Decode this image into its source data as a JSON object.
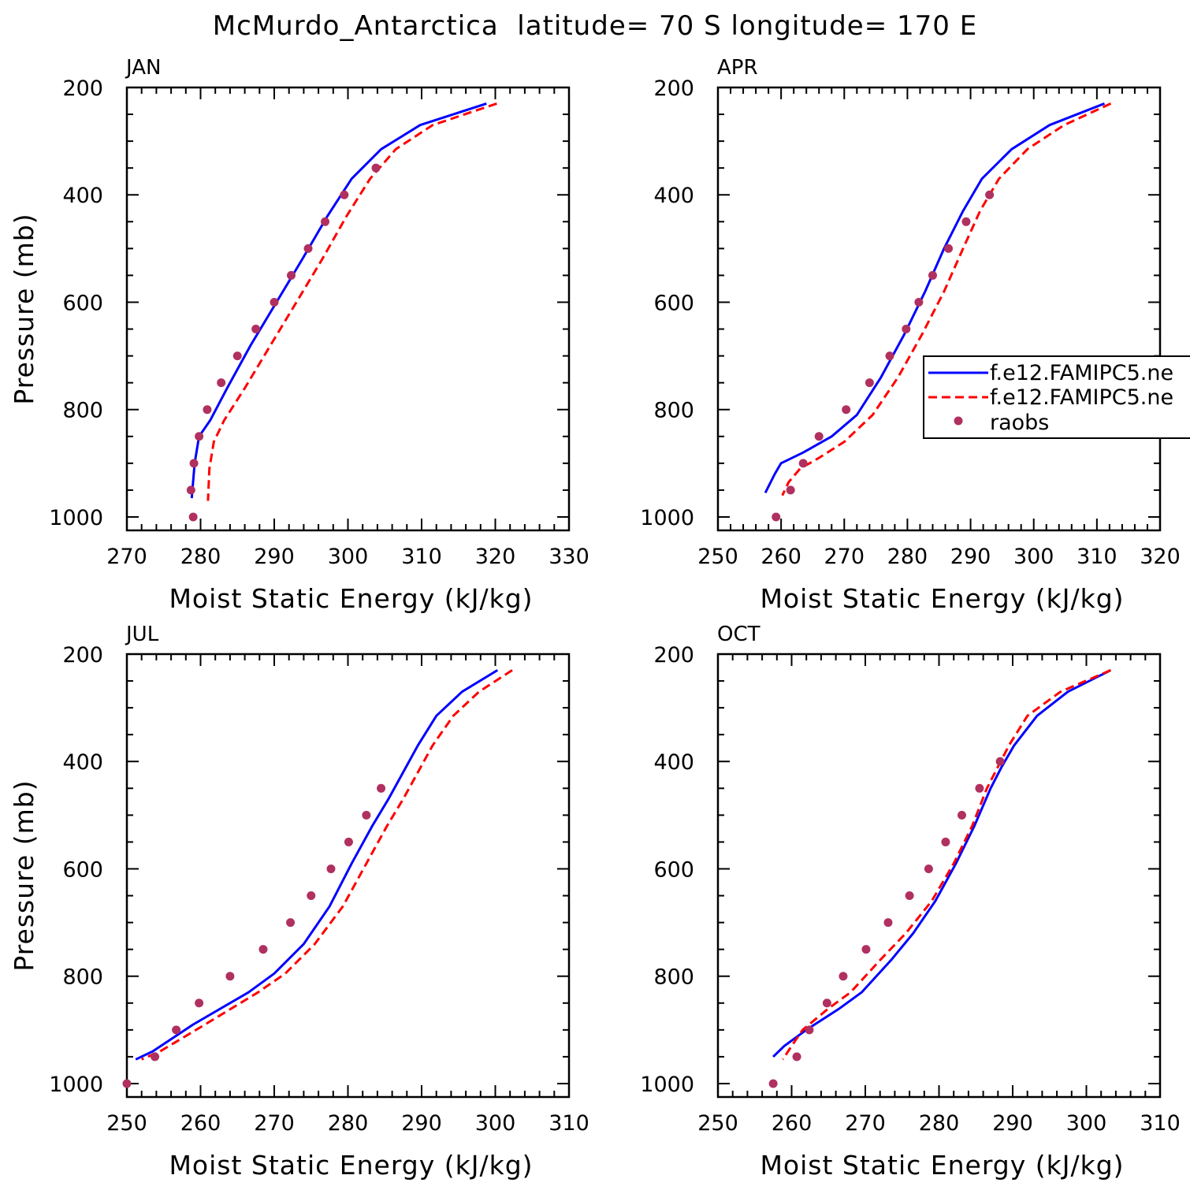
{
  "title": "McMurdo_Antarctica  latitude= 70 S longitude= 170 E",
  "chart_data": [
    {
      "type": "line",
      "panel": "JAN",
      "xlabel": "Moist Static Energy (kJ/kg)",
      "ylabel": "Pressure (mb)",
      "xlim": [
        270,
        330
      ],
      "ylim": [
        200,
        1025
      ],
      "y_reversed": true,
      "xticks": [
        270,
        280,
        290,
        300,
        310,
        320,
        330
      ],
      "yticks": [
        200,
        400,
        600,
        800,
        1000
      ],
      "grid": false,
      "series": [
        {
          "style": "solid",
          "color": "#0000ff",
          "x": [
            318.8,
            309.8,
            304.5,
            300.5,
            297.2,
            293.8,
            290.3,
            286.8,
            283.6,
            281.3,
            279.8,
            279.2,
            278.8
          ],
          "y": [
            230,
            270,
            315,
            370,
            440,
            520,
            600,
            680,
            760,
            820,
            850,
            900,
            965
          ]
        },
        {
          "style": "dashed",
          "color": "#ff0000",
          "x": [
            320.2,
            311.5,
            306.5,
            303.0,
            299.8,
            296.5,
            293.0,
            289.5,
            286.0,
            283.2,
            281.8,
            281.2,
            281.0
          ],
          "y": [
            230,
            270,
            315,
            370,
            440,
            520,
            600,
            680,
            760,
            820,
            860,
            910,
            970
          ]
        },
        {
          "style": "markers",
          "color": "#b03060",
          "x": [
            303.8,
            299.5,
            296.9,
            294.6,
            292.3,
            290.0,
            287.5,
            285.0,
            282.8,
            280.9,
            279.8,
            279.1,
            278.7,
            279.0
          ],
          "y": [
            350,
            400,
            450,
            500,
            550,
            600,
            650,
            700,
            750,
            800,
            850,
            900,
            950,
            1000
          ]
        }
      ]
    },
    {
      "type": "line",
      "panel": "APR",
      "xlabel": "Moist Static Energy (kJ/kg)",
      "xlim": [
        250,
        320
      ],
      "ylim": [
        200,
        1025
      ],
      "y_reversed": true,
      "xticks": [
        250,
        260,
        270,
        280,
        290,
        300,
        310,
        320
      ],
      "yticks": [
        200,
        400,
        600,
        800,
        1000
      ],
      "grid": false,
      "legend": {
        "placement": "right",
        "entries": [
          "f.e12.FAMIPC5.ne",
          "f.e12.FAMIPC5.ne",
          "raobs"
        ]
      },
      "series": [
        {
          "style": "solid",
          "color": "#0000ff",
          "x": [
            311.2,
            302.5,
            296.5,
            291.8,
            288.8,
            285.8,
            282.8,
            279.5,
            275.8,
            272.0,
            268.0,
            263.5,
            260.0,
            259.0,
            257.5
          ],
          "y": [
            230,
            270,
            315,
            370,
            430,
            500,
            580,
            660,
            740,
            810,
            850,
            880,
            900,
            920,
            955
          ]
        },
        {
          "style": "dashed",
          "color": "#ff0000",
          "x": [
            312.2,
            304.8,
            299.0,
            294.5,
            291.5,
            288.8,
            285.8,
            282.3,
            278.5,
            274.5,
            270.0,
            266.0,
            263.0,
            261.2,
            260.2
          ],
          "y": [
            230,
            270,
            315,
            370,
            430,
            500,
            580,
            660,
            740,
            810,
            860,
            890,
            910,
            935,
            960
          ]
        },
        {
          "style": "markers",
          "color": "#b03060",
          "x": [
            293.0,
            289.3,
            286.5,
            284.0,
            281.8,
            279.8,
            277.2,
            274.0,
            270.3,
            266.0,
            263.5,
            261.5,
            259.2
          ],
          "y": [
            400,
            450,
            500,
            550,
            600,
            650,
            700,
            750,
            800,
            850,
            900,
            950,
            1000
          ]
        }
      ]
    },
    {
      "type": "line",
      "panel": "JUL",
      "xlabel": "Moist Static Energy (kJ/kg)",
      "ylabel": "Pressure (mb)",
      "xlim": [
        250,
        310
      ],
      "ylim": [
        200,
        1025
      ],
      "y_reversed": true,
      "xticks": [
        250,
        260,
        270,
        280,
        290,
        300,
        310
      ],
      "yticks": [
        200,
        400,
        600,
        800,
        1000
      ],
      "grid": false,
      "series": [
        {
          "style": "solid",
          "color": "#0000ff",
          "x": [
            300.3,
            295.5,
            292.0,
            289.5,
            287.5,
            285.5,
            283.3,
            280.5,
            277.5,
            274.0,
            270.0,
            266.5,
            259.0,
            253.5,
            251.2
          ],
          "y": [
            230,
            270,
            315,
            370,
            420,
            470,
            520,
            590,
            670,
            740,
            795,
            830,
            890,
            940,
            955
          ]
        },
        {
          "style": "dashed",
          "color": "#ff0000",
          "x": [
            302.3,
            297.8,
            294.3,
            291.5,
            289.5,
            287.5,
            285.3,
            282.5,
            279.3,
            275.5,
            271.5,
            267.8,
            260.0,
            254.5,
            252.0
          ],
          "y": [
            230,
            270,
            315,
            370,
            420,
            470,
            520,
            590,
            670,
            740,
            795,
            830,
            895,
            940,
            955
          ]
        },
        {
          "style": "markers",
          "color": "#b03060",
          "x": [
            284.5,
            282.5,
            280.1,
            277.7,
            275.0,
            272.2,
            268.5,
            264.0,
            259.8,
            256.7,
            253.8,
            250.0
          ],
          "y": [
            450,
            500,
            550,
            600,
            650,
            700,
            750,
            800,
            850,
            900,
            950,
            1000
          ]
        }
      ]
    },
    {
      "type": "line",
      "panel": "OCT",
      "xlabel": "Moist Static Energy (kJ/kg)",
      "xlim": [
        250,
        310
      ],
      "ylim": [
        200,
        1025
      ],
      "y_reversed": true,
      "xticks": [
        250,
        260,
        270,
        280,
        290,
        300,
        310
      ],
      "yticks": [
        200,
        400,
        600,
        800,
        1000
      ],
      "grid": false,
      "series": [
        {
          "style": "solid",
          "color": "#0000ff",
          "x": [
            303.3,
            297.5,
            293.3,
            290.2,
            288.5,
            287.0,
            284.8,
            282.3,
            279.5,
            276.5,
            273.5,
            269.5,
            266.5,
            262.0,
            259.0,
            257.5
          ],
          "y": [
            230,
            270,
            315,
            370,
            410,
            450,
            520,
            590,
            660,
            720,
            770,
            830,
            860,
            900,
            930,
            950
          ]
        },
        {
          "style": "dashed",
          "color": "#ff0000",
          "x": [
            303.3,
            296.5,
            292.0,
            289.5,
            288.0,
            286.5,
            284.5,
            282.0,
            279.0,
            275.5,
            272.0,
            268.0,
            265.0,
            261.5,
            260.0,
            258.8
          ],
          "y": [
            230,
            270,
            315,
            370,
            410,
            450,
            520,
            590,
            660,
            720,
            770,
            830,
            860,
            900,
            930,
            955
          ]
        },
        {
          "style": "markers",
          "color": "#b03060",
          "x": [
            288.3,
            285.5,
            283.1,
            280.9,
            278.6,
            276.0,
            273.1,
            270.1,
            267.0,
            264.8,
            262.4,
            260.7,
            257.5
          ],
          "y": [
            400,
            450,
            500,
            550,
            600,
            650,
            700,
            750,
            800,
            850,
            900,
            950,
            1000
          ]
        }
      ]
    }
  ]
}
